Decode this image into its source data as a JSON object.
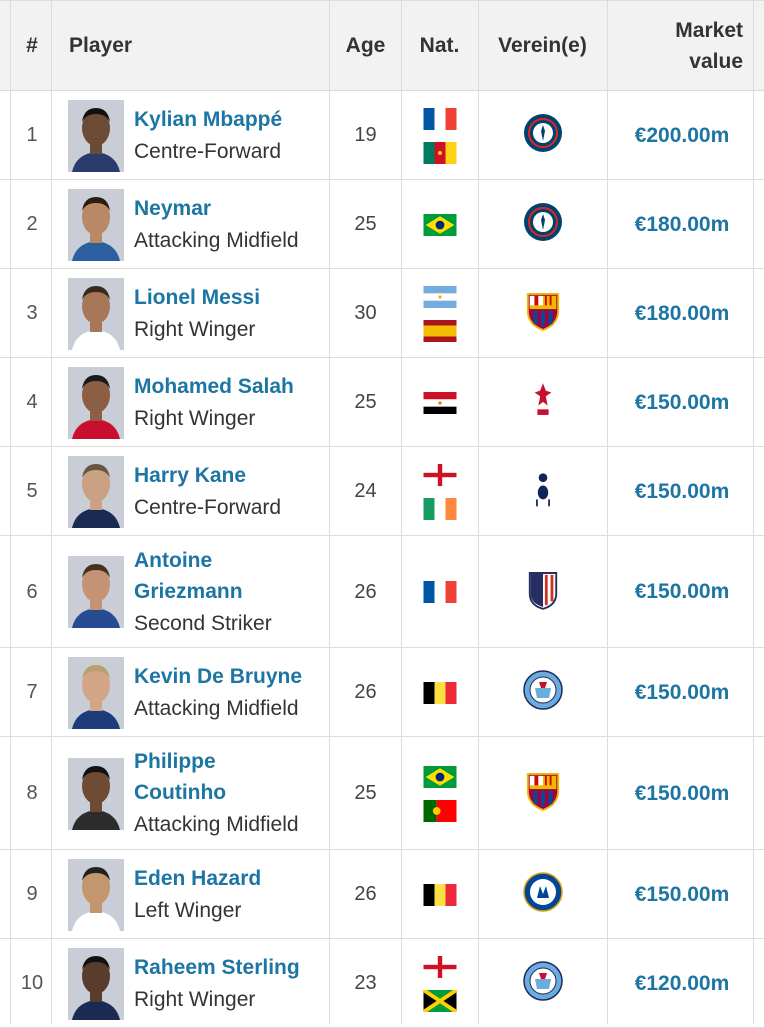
{
  "header": {
    "num": "#",
    "player": "Player",
    "age": "Age",
    "nat": "Nat.",
    "club": "Verein(e)",
    "value_line1": "Market",
    "value_line2": "value"
  },
  "rows": [
    {
      "rank": "1",
      "name": "Kylian Mbappé",
      "position": "Centre-Forward",
      "age": "19",
      "nats": [
        "france-flag",
        "cameroon-flag"
      ],
      "club": "psg-crest",
      "value": "€200.00m"
    },
    {
      "rank": "2",
      "name": "Neymar",
      "position": "Attacking Midfield",
      "age": "25",
      "nats": [
        "brazil-flag"
      ],
      "club": "psg-crest",
      "value": "€180.00m"
    },
    {
      "rank": "3",
      "name": "Lionel Messi",
      "position": "Right Winger",
      "age": "30",
      "nats": [
        "argentina-flag",
        "spain-flag"
      ],
      "club": "barcelona-crest",
      "value": "€180.00m"
    },
    {
      "rank": "4",
      "name": "Mohamed Salah",
      "position": "Right Winger",
      "age": "25",
      "nats": [
        "egypt-flag"
      ],
      "club": "liverpool-crest",
      "value": "€150.00m"
    },
    {
      "rank": "5",
      "name": "Harry Kane",
      "position": "Centre-Forward",
      "age": "24",
      "nats": [
        "england-flag",
        "ireland-flag"
      ],
      "club": "tottenham-crest",
      "value": "€150.00m"
    },
    {
      "rank": "6",
      "name": "Antoine Griezmann",
      "name_line1": "Antoine",
      "name_line2": "Griezmann",
      "position": "Second Striker",
      "age": "26",
      "nats": [
        "france-flag"
      ],
      "club": "atletico-crest",
      "value": "€150.00m"
    },
    {
      "rank": "7",
      "name": "Kevin De Bruyne",
      "position": "Attacking Midfield",
      "age": "26",
      "nats": [
        "belgium-flag"
      ],
      "club": "mancity-crest",
      "value": "€150.00m"
    },
    {
      "rank": "8",
      "name": "Philippe Coutinho",
      "name_line1": "Philippe",
      "name_line2": "Coutinho",
      "position": "Attacking Midfield",
      "age": "25",
      "nats": [
        "brazil-flag",
        "portugal-flag"
      ],
      "club": "barcelona-crest",
      "value": "€150.00m"
    },
    {
      "rank": "9",
      "name": "Eden Hazard",
      "position": "Left Winger",
      "age": "26",
      "nats": [
        "belgium-flag"
      ],
      "club": "chelsea-crest",
      "value": "€150.00m"
    },
    {
      "rank": "10",
      "name": "Raheem Sterling",
      "position": "Right Winger",
      "age": "23",
      "nats": [
        "england-flag",
        "jamaica-flag"
      ],
      "club": "mancity-crest",
      "value": "€120.00m"
    }
  ],
  "colors": {
    "link": "#1d75a3",
    "header_bg": "#f2f2f2",
    "border": "#dcdcdc"
  }
}
